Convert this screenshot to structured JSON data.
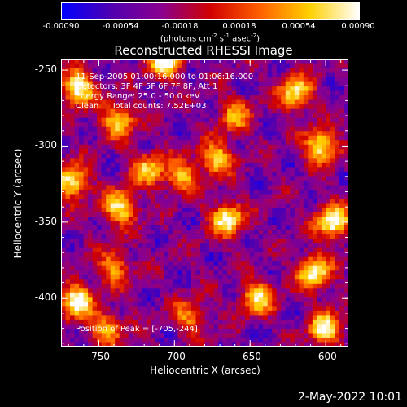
{
  "chart_data": {
    "type": "heatmap",
    "title": "Reconstructed RHESSI Image",
    "xlabel": "Heliocentric X (arcsec)",
    "ylabel": "Heliocentric Y (arcsec)",
    "xlim": [
      -775,
      -585
    ],
    "ylim": [
      -432,
      -243
    ],
    "x_ticks": [
      "-750",
      "-700",
      "-650",
      "-600"
    ],
    "y_ticks": [
      "-250",
      "-300",
      "-350",
      "-400"
    ],
    "colorbar": {
      "ticks": [
        "-0.00090",
        "-0.00054",
        "-0.00018",
        "0.00018",
        "0.00054",
        "0.00090"
      ],
      "range": [
        -0.0009,
        0.0009
      ],
      "units_prefix": "(photons cm",
      "units_exp1": "-2",
      "units_mid": " s",
      "units_exp2": "-1",
      "units_mid2": " asec",
      "units_exp3": "-2",
      "units_suffix": ")",
      "colors": [
        "#0000ff",
        "#5000b0",
        "#8a0090",
        "#d00000",
        "#ff6000",
        "#ffd000",
        "#ffffff"
      ]
    },
    "annotations": [
      "11-Sep-2005 01:00:16.000 to 01:06:16.000",
      "Detectors: 3F 4F 5F 6F 7F 8F, Att 1",
      "Energy Range: 25.0 - 50.0 keV",
      "Clean     Total counts: 7.52E+03"
    ],
    "peak_label": "Position of Peak = [-705,-244]",
    "bright_regions": [
      {
        "x": -764,
        "y": -262,
        "intensity": 1.0
      },
      {
        "x": -737,
        "y": -283,
        "intensity": 0.8
      },
      {
        "x": -768,
        "y": -323,
        "intensity": 0.9
      },
      {
        "x": -765,
        "y": -402,
        "intensity": 0.95
      },
      {
        "x": -736,
        "y": -340,
        "intensity": 0.85
      },
      {
        "x": -717,
        "y": -315,
        "intensity": 0.7
      },
      {
        "x": -695,
        "y": -320,
        "intensity": 0.65
      },
      {
        "x": -672,
        "y": -308,
        "intensity": 0.75
      },
      {
        "x": -665,
        "y": -348,
        "intensity": 0.9
      },
      {
        "x": -706,
        "y": -244,
        "intensity": 1.0
      },
      {
        "x": -620,
        "y": -265,
        "intensity": 0.85
      },
      {
        "x": -603,
        "y": -300,
        "intensity": 0.9
      },
      {
        "x": -595,
        "y": -350,
        "intensity": 1.0
      },
      {
        "x": -608,
        "y": -383,
        "intensity": 0.95
      },
      {
        "x": -645,
        "y": -400,
        "intensity": 0.8
      },
      {
        "x": -600,
        "y": -420,
        "intensity": 0.9
      },
      {
        "x": -740,
        "y": -380,
        "intensity": 0.6
      },
      {
        "x": -690,
        "y": -412,
        "intensity": 0.55
      },
      {
        "x": -660,
        "y": -280,
        "intensity": 0.6
      },
      {
        "x": -745,
        "y": -420,
        "intensity": 0.65
      }
    ],
    "grid": false
  },
  "footer": {
    "date": "2-May-2022 10:01"
  }
}
